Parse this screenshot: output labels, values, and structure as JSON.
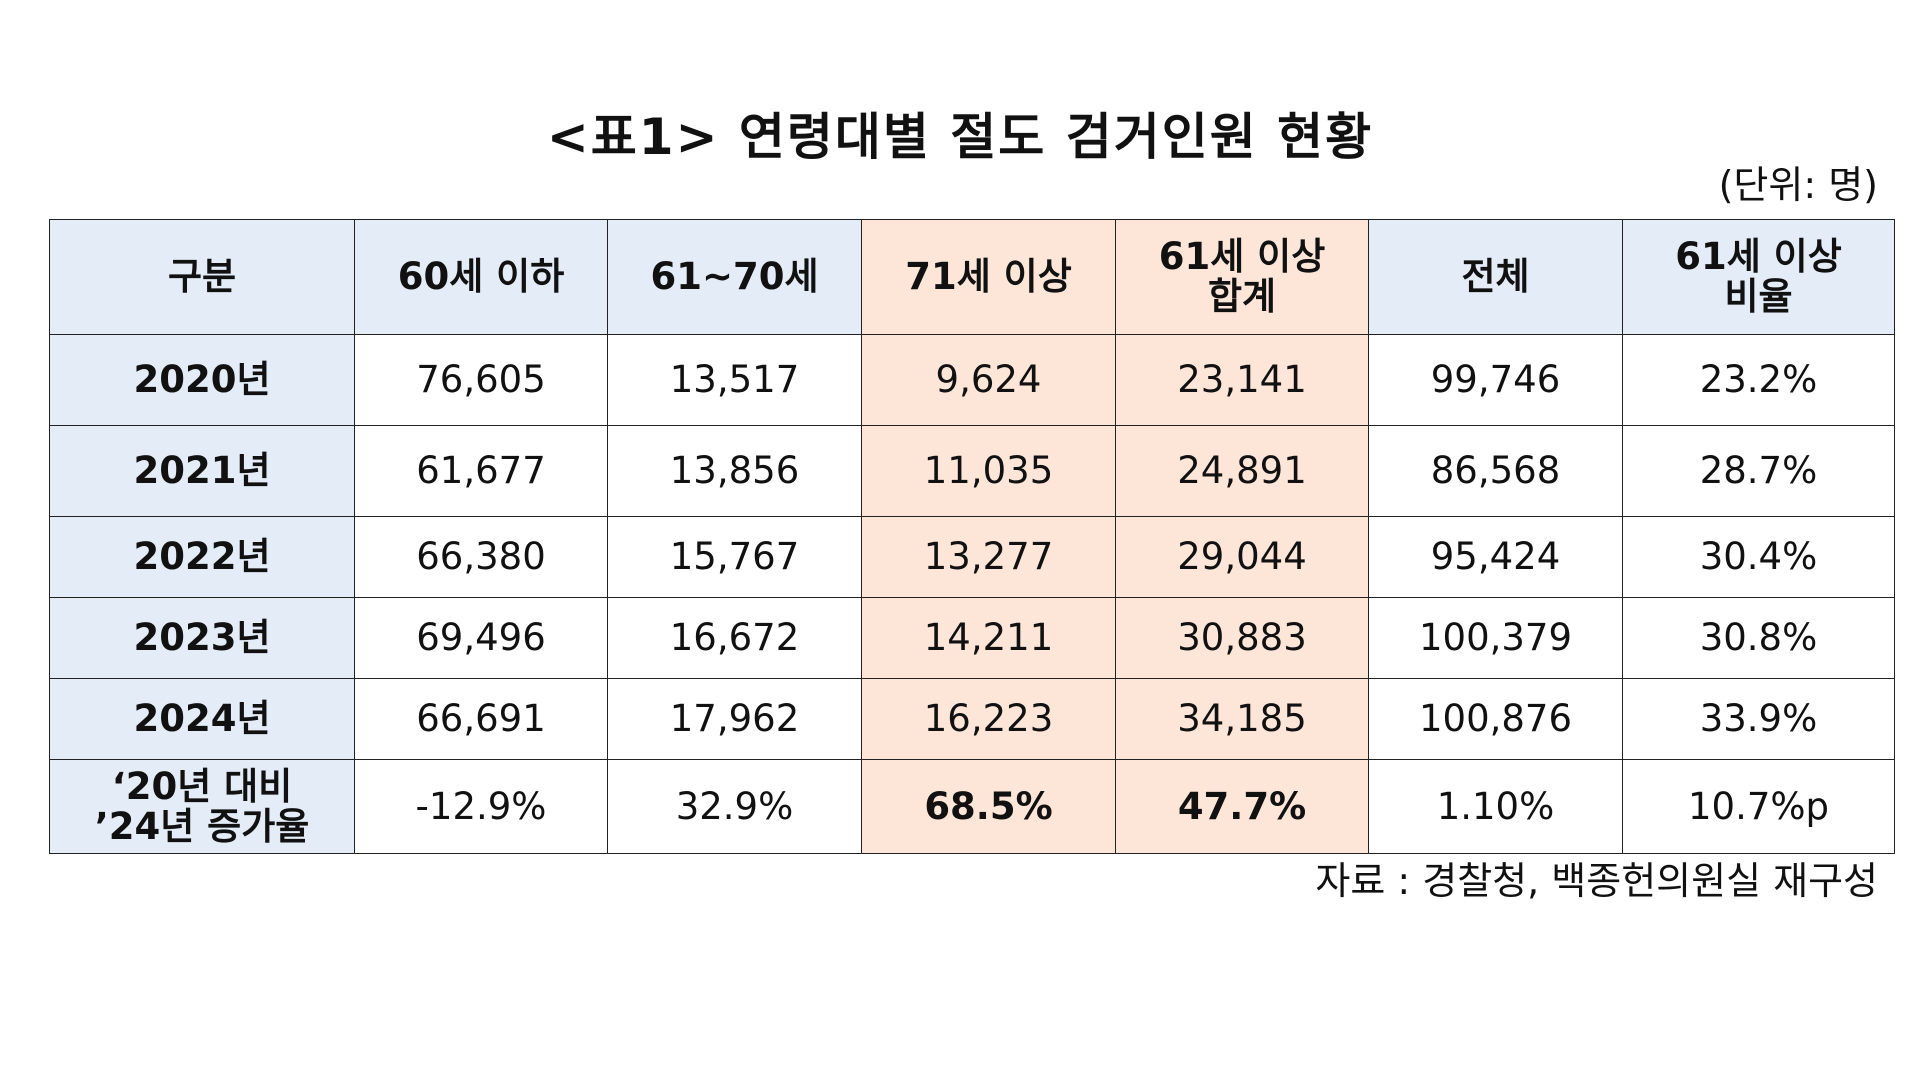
{
  "title": "<표1> 연령대별 절도 검거인원 현황",
  "unit_note": "(단위: 명)",
  "table": {
    "headers": [
      {
        "line1": "구분",
        "line2": ""
      },
      {
        "line1": "60세 이하",
        "line2": ""
      },
      {
        "line1": "61~70세",
        "line2": ""
      },
      {
        "line1": "71세 이상",
        "line2": ""
      },
      {
        "line1": "61세 이상",
        "line2": "합계"
      },
      {
        "line1": "전체",
        "line2": ""
      },
      {
        "line1": "61세 이상",
        "line2": "비율"
      }
    ],
    "rows": [
      {
        "label": "2020년",
        "cells": [
          "76,605",
          "13,517",
          "9,624",
          "23,141",
          "99,746",
          "23.2%"
        ]
      },
      {
        "label": "2021년",
        "cells": [
          "61,677",
          "13,856",
          "11,035",
          "24,891",
          "86,568",
          "28.7%"
        ]
      },
      {
        "label": "2022년",
        "cells": [
          "66,380",
          "15,767",
          "13,277",
          "29,044",
          "95,424",
          "30.4%"
        ]
      },
      {
        "label": "2023년",
        "cells": [
          "69,496",
          "16,672",
          "14,211",
          "30,883",
          "100,379",
          "30.8%"
        ]
      },
      {
        "label": "2024년",
        "cells": [
          "66,691",
          "17,962",
          "16,223",
          "34,185",
          "100,876",
          "33.9%"
        ]
      }
    ],
    "summary_row": {
      "label_line1": "‘20년 대비",
      "label_line2": "’24년 증가율",
      "cells": [
        "-12.9%",
        "32.9%",
        "68.5%",
        "47.7%",
        "1.10%",
        "10.7%p"
      ]
    }
  },
  "source": "자료 : 경찰청, 백종헌의원실 재구성",
  "colors": {
    "header_blue": "#e3ecf7",
    "highlight_peach": "#fde6d8",
    "border": "#222222"
  }
}
